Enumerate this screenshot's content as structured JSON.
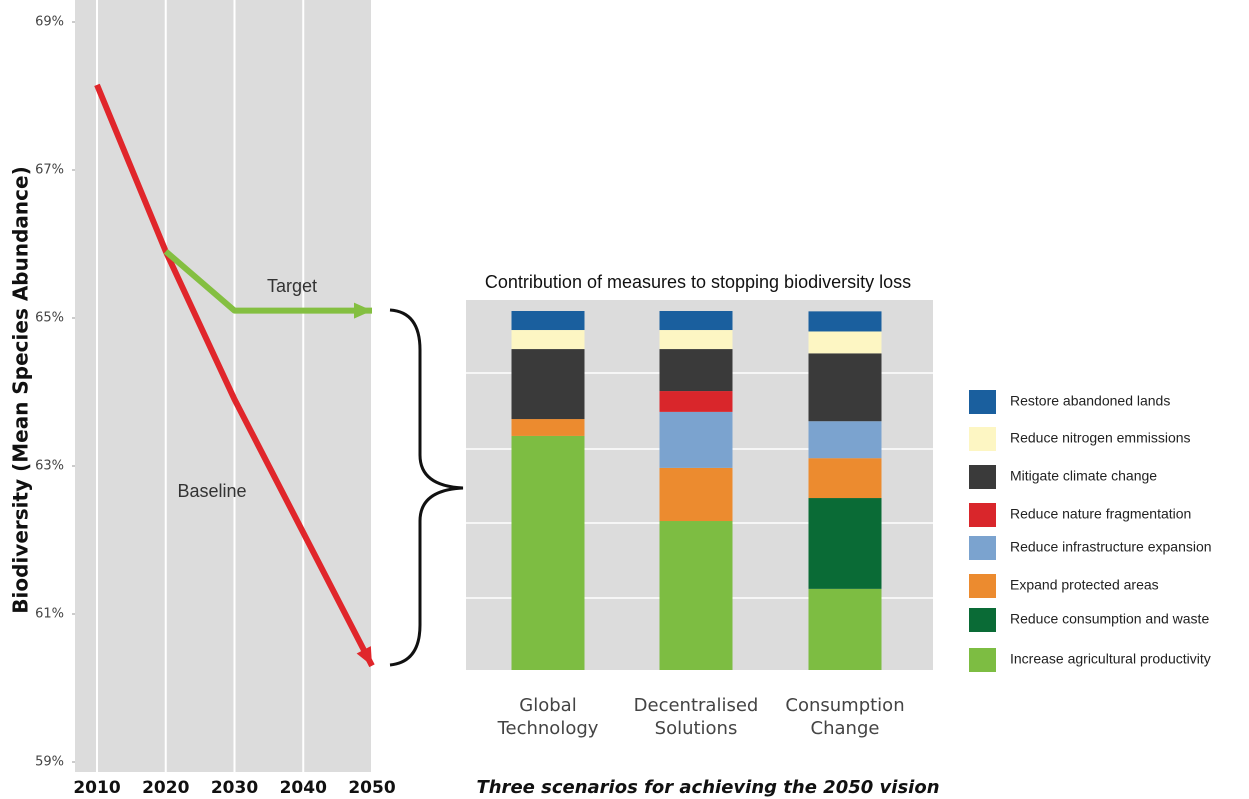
{
  "chart_data": [
    {
      "type": "line",
      "y_label": "Biodiversity (Mean  Species Abundance)",
      "x": [
        2010,
        2020,
        2030,
        2040,
        2050
      ],
      "xlim": [
        2010,
        2050
      ],
      "xticks": [
        2010,
        2020,
        2030,
        2040,
        2050
      ],
      "ylim": [
        59,
        69
      ],
      "yticks": [
        {
          "value": 59,
          "label": "59%"
        },
        {
          "value": 61,
          "label": "61%"
        },
        {
          "value": 63,
          "label": "63%"
        },
        {
          "value": 65,
          "label": "65%"
        },
        {
          "value": 67,
          "label": "67%"
        },
        {
          "value": 69,
          "label": "69%"
        }
      ],
      "grid": true,
      "series": [
        {
          "name": "Baseline",
          "color": "#e0262b",
          "values": [
            68.15,
            65.9,
            63.9,
            62.1,
            60.3
          ]
        },
        {
          "name": "Target",
          "color": "#84bf41",
          "values": [
            null,
            65.9,
            65.1,
            65.1,
            65.1
          ]
        }
      ]
    },
    {
      "type": "bar",
      "stacked": true,
      "title": "Contribution of measures to stopping biodiversity loss",
      "x_label": "Three scenarios for achieving the 2050 vision",
      "categories": [
        "Global Technology",
        "Decentralised Solutions",
        "Consumption Change"
      ],
      "ylim": [
        0,
        100
      ],
      "legend": "right",
      "series": [
        {
          "name": "Increase agricultural productivity",
          "color": "#7dbd42",
          "values": [
            65.2,
            41.5,
            22.6
          ]
        },
        {
          "name": "Reduce consumption and waste",
          "color": "#0a6b36",
          "values": [
            0,
            0,
            25.3
          ]
        },
        {
          "name": "Expand protected areas",
          "color": "#ec8b2f",
          "values": [
            4.7,
            14.8,
            11.1
          ]
        },
        {
          "name": "Reduce infrastructure expansion",
          "color": "#7ba3cf",
          "values": [
            0,
            15.6,
            10.3
          ]
        },
        {
          "name": "Reduce nature fragmentation",
          "color": "#d9262b",
          "values": [
            0,
            5.8,
            0
          ]
        },
        {
          "name": "Mitigate climate change",
          "color": "#3a3a3a",
          "values": [
            19.5,
            11.7,
            18.9
          ]
        },
        {
          "name": "Reduce nitrogen emmissions",
          "color": "#fdf6c3",
          "values": [
            5.3,
            5.3,
            6.1
          ]
        },
        {
          "name": "Restore abandoned lands",
          "color": "#1a5f9e",
          "values": [
            5.3,
            5.3,
            5.6
          ]
        }
      ]
    }
  ]
}
